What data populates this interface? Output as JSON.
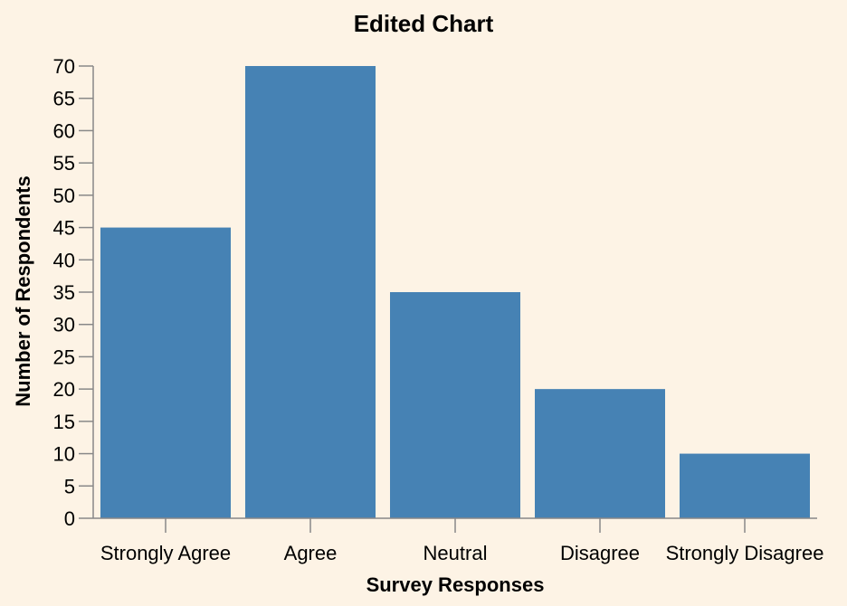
{
  "chart_data": {
    "type": "bar",
    "title": "Edited Chart",
    "xlabel": "Survey Responses",
    "ylabel": "Number of Respondents",
    "categories": [
      "Strongly Agree",
      "Agree",
      "Neutral",
      "Disagree",
      "Strongly Disagree"
    ],
    "values": [
      45,
      70,
      35,
      20,
      10
    ],
    "ylim": [
      0,
      70
    ],
    "yticks": [
      "0",
      "5",
      "10",
      "15",
      "20",
      "25",
      "30",
      "35",
      "40",
      "45",
      "50",
      "55",
      "60",
      "65",
      "70"
    ],
    "grid": false,
    "bar_color": "#4682b4",
    "background_color": "#fdf3e5"
  }
}
